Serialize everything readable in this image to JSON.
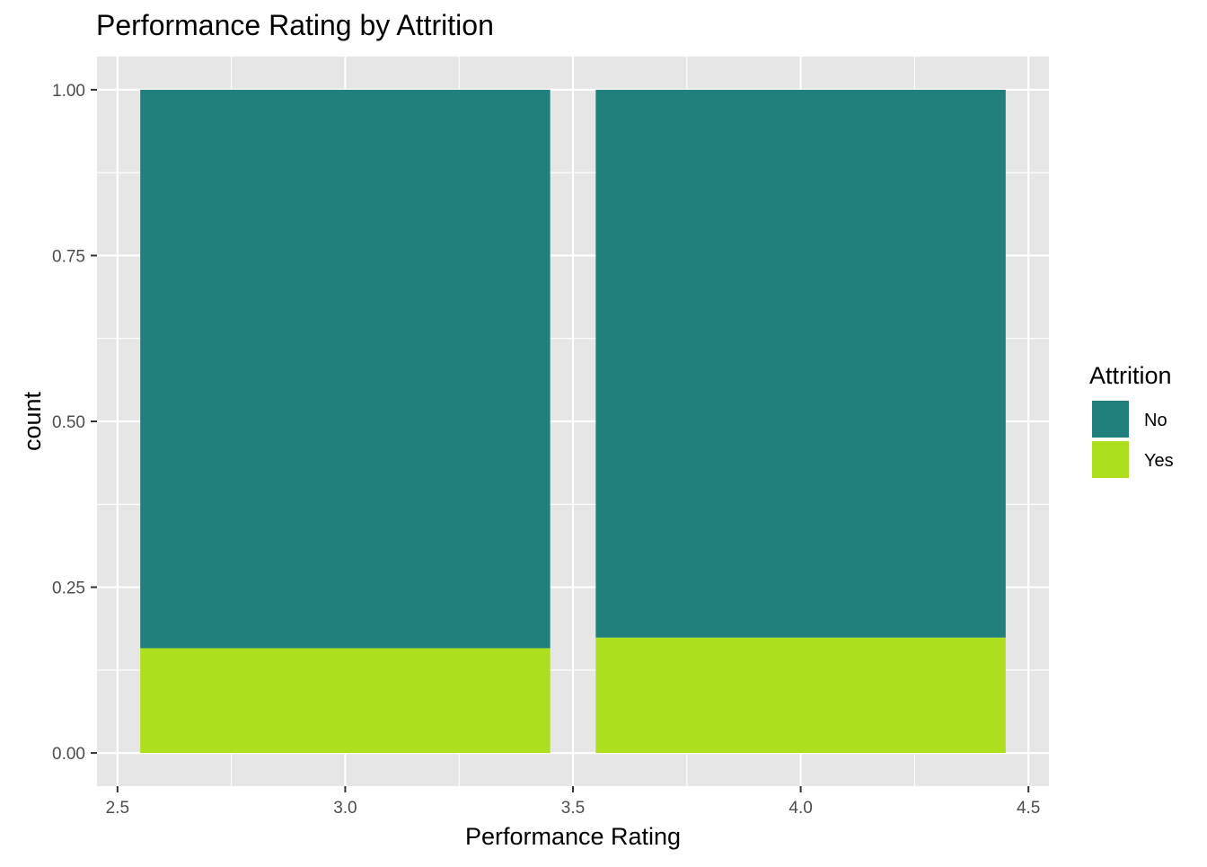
{
  "chart_data": {
    "type": "bar",
    "stacked": true,
    "title": "Performance Rating by Attrition",
    "xlabel": "Performance Rating",
    "ylabel": "count",
    "xlim": [
      2.455,
      4.545
    ],
    "ylim": [
      -0.05,
      1.05
    ],
    "x_ticks": [
      {
        "value": 2.5,
        "label": "2.5"
      },
      {
        "value": 3.0,
        "label": "3.0"
      },
      {
        "value": 3.5,
        "label": "3.5"
      },
      {
        "value": 4.0,
        "label": "4.0"
      },
      {
        "value": 4.5,
        "label": "4.5"
      }
    ],
    "y_ticks": [
      {
        "value": 0.0,
        "label": "0.00"
      },
      {
        "value": 0.25,
        "label": "0.25"
      },
      {
        "value": 0.5,
        "label": "0.50"
      },
      {
        "value": 0.75,
        "label": "0.75"
      },
      {
        "value": 1.0,
        "label": "1.00"
      }
    ],
    "grid": true,
    "bar_width": 0.9,
    "x": [
      3,
      4
    ],
    "series": [
      {
        "name": "Yes",
        "color": "#addf1f",
        "values": [
          0.158,
          0.174
        ]
      },
      {
        "name": "No",
        "color": "#21807b",
        "values": [
          0.842,
          0.826
        ]
      }
    ],
    "legend": {
      "title": "Attrition",
      "placement": "right",
      "items": [
        {
          "label": "No",
          "color": "#21807b"
        },
        {
          "label": "Yes",
          "color": "#addf1f"
        }
      ]
    },
    "panel_color": "#e6e6e6"
  }
}
